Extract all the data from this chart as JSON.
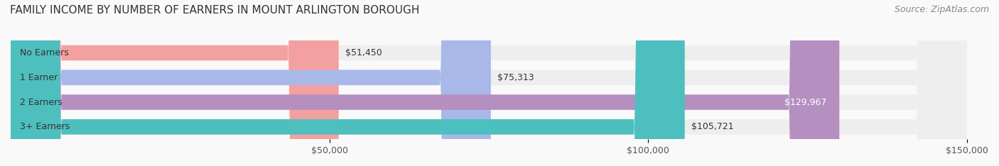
{
  "title": "FAMILY INCOME BY NUMBER OF EARNERS IN MOUNT ARLINGTON BOROUGH",
  "source": "Source: ZipAtlas.com",
  "categories": [
    "No Earners",
    "1 Earner",
    "2 Earners",
    "3+ Earners"
  ],
  "values": [
    51450,
    75313,
    129967,
    105721
  ],
  "colors": [
    "#f4a0a0",
    "#a8b8e8",
    "#b48fc0",
    "#4dbfbf"
  ],
  "bar_labels": [
    "$51,450",
    "$75,313",
    "$129,967",
    "$105,721"
  ],
  "xlim": [
    0,
    150000
  ],
  "xticks": [
    50000,
    100000,
    150000
  ],
  "xticklabels": [
    "$50,000",
    "$100,000",
    "$150,000"
  ],
  "bg_color": "#f5f5f5",
  "bar_bg_color": "#eeeeee",
  "title_fontsize": 11,
  "source_fontsize": 9,
  "label_fontsize": 9,
  "tick_fontsize": 9,
  "bar_height": 0.62,
  "figsize": [
    14.06,
    2.34
  ],
  "dpi": 100
}
